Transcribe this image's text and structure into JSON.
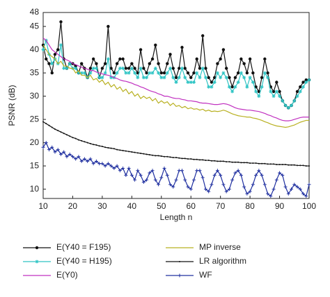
{
  "chart_data": {
    "type": "line",
    "x_label": "Length n",
    "y_label": "PSNR (dB)",
    "x": [
      10,
      11,
      12,
      13,
      14,
      15,
      16,
      17,
      18,
      19,
      20,
      21,
      22,
      23,
      24,
      25,
      26,
      27,
      28,
      29,
      30,
      31,
      32,
      33,
      34,
      35,
      36,
      37,
      38,
      39,
      40,
      41,
      42,
      43,
      44,
      45,
      46,
      47,
      48,
      49,
      50,
      51,
      52,
      53,
      54,
      55,
      56,
      57,
      58,
      59,
      60,
      61,
      62,
      63,
      64,
      65,
      66,
      67,
      68,
      69,
      70,
      71,
      72,
      73,
      74,
      75,
      76,
      77,
      78,
      79,
      80,
      81,
      82,
      83,
      84,
      85,
      86,
      87,
      88,
      89,
      90,
      91,
      92,
      93,
      94,
      95,
      96,
      97,
      98,
      99,
      100
    ],
    "xlim": [
      10,
      100
    ],
    "xticks": [
      10,
      20,
      30,
      40,
      50,
      60,
      70,
      80,
      90,
      100
    ],
    "ylim": [
      8,
      48
    ],
    "yticks": [
      10,
      15,
      20,
      25,
      30,
      35,
      40,
      45,
      48
    ],
    "series": [
      {
        "name": "E(Y40 = F195)",
        "color": "#111111",
        "marker": "circle",
        "values": [
          41,
          38,
          37,
          35,
          39,
          40,
          46,
          38,
          36,
          37,
          37,
          36.5,
          35,
          37,
          36,
          34,
          36,
          38,
          37,
          34,
          36,
          37,
          45,
          36,
          35,
          37,
          38,
          38,
          36,
          36,
          37,
          36,
          35,
          40,
          36,
          35,
          37,
          38,
          41,
          37,
          35,
          35,
          37,
          39,
          36,
          34,
          36,
          40.5,
          36,
          35,
          34,
          35,
          38,
          36,
          43,
          36,
          34,
          33,
          34,
          37,
          38,
          40,
          36,
          34,
          32,
          34,
          35,
          38,
          37,
          35,
          38,
          35,
          32,
          31,
          34,
          38,
          35,
          32,
          31,
          33,
          31,
          29,
          28,
          27.5,
          28,
          29,
          31,
          32,
          33,
          33.5,
          33.5
        ]
      },
      {
        "name": "E(Y40 = H195)",
        "color": "#2ec4c4",
        "marker": "star",
        "values": [
          40,
          42,
          39,
          37,
          38,
          37,
          41,
          36,
          36,
          37,
          36,
          36,
          35,
          35,
          35,
          34,
          35,
          36,
          36,
          34,
          34,
          35,
          38,
          34,
          34,
          35,
          36,
          36,
          35,
          35,
          36,
          35,
          34,
          36,
          34,
          34,
          35,
          35,
          36,
          35,
          34,
          34,
          35,
          36,
          34,
          33,
          34,
          36,
          34,
          33,
          33,
          33,
          35,
          34,
          36,
          34,
          32,
          32,
          33,
          35,
          34,
          35,
          34,
          32,
          31,
          32,
          33,
          35,
          34,
          32,
          34,
          33,
          31,
          30,
          32,
          35,
          34,
          31,
          30,
          31,
          30,
          29,
          28,
          27.5,
          28,
          29,
          30,
          31,
          32,
          33,
          33.5
        ]
      },
      {
        "name": "E(Y0)",
        "color": "#c030c0",
        "marker": "none",
        "values": [
          42.5,
          42,
          41,
          40,
          39.5,
          39,
          38.5,
          38,
          37.8,
          37.5,
          37,
          36.8,
          36.5,
          36.2,
          36,
          35.8,
          35.5,
          35.5,
          35.2,
          35,
          34.8,
          34.6,
          34.5,
          34.3,
          34,
          33.8,
          33.5,
          33.3,
          33.2,
          33,
          32.8,
          32.5,
          32.3,
          32,
          31.8,
          31.5,
          31.2,
          31,
          30.8,
          30.5,
          30.3,
          30,
          30,
          29.8,
          29.6,
          29.5,
          29.5,
          29.3,
          29.2,
          29,
          29,
          28.9,
          28.8,
          28.6,
          28.5,
          28.5,
          28.4,
          28.3,
          28.2,
          28.2,
          28.3,
          28.4,
          28.3,
          28.1,
          27.8,
          27.5,
          27.3,
          27.2,
          27.1,
          27,
          27,
          26.9,
          26.8,
          26.7,
          26.5,
          26.3,
          26,
          25.8,
          25.5,
          25.3,
          25,
          24.8,
          24.7,
          24.7,
          24.8,
          25,
          25.2,
          25.4,
          25.5,
          25.5,
          25.5
        ]
      },
      {
        "name": "MP inverse",
        "color": "#b8b020",
        "marker": "none",
        "values": [
          41,
          40,
          39,
          38.5,
          38,
          37,
          37.5,
          36.5,
          36.5,
          36,
          36,
          35,
          35.5,
          34.5,
          34.5,
          34,
          34.5,
          33.5,
          33.8,
          33,
          33.5,
          32.5,
          33,
          32,
          32.5,
          31.5,
          32,
          31,
          31.5,
          30.5,
          31,
          30,
          30.5,
          29.5,
          30,
          29.5,
          29.8,
          29,
          29.5,
          28.5,
          29,
          28.5,
          28.8,
          28,
          28.5,
          27.8,
          28,
          27.5,
          27.8,
          27.3,
          27.5,
          27.2,
          27.3,
          27,
          27.2,
          26.8,
          27,
          26.7,
          26.8,
          26.7,
          26.8,
          27,
          26.8,
          26.5,
          26.2,
          26,
          25.8,
          25.7,
          25.6,
          25.5,
          25.5,
          25.3,
          25.2,
          25,
          24.8,
          24.5,
          24.3,
          24,
          23.8,
          23.6,
          23.5,
          23.4,
          23.3,
          23.4,
          23.6,
          23.8,
          24.1,
          24.4,
          24.6,
          24.8,
          24.8
        ]
      },
      {
        "name": "LR algorithm",
        "color": "#111111",
        "marker": "dot",
        "values": [
          24.5,
          24.1,
          23.7,
          23.3,
          22.9,
          22.6,
          22.3,
          22.0,
          21.7,
          21.4,
          21.1,
          20.9,
          20.6,
          20.4,
          20.2,
          20.0,
          19.8,
          19.6,
          19.5,
          19.3,
          19.2,
          19.0,
          18.9,
          18.8,
          18.7,
          18.5,
          18.4,
          18.3,
          18.2,
          18.1,
          18.0,
          17.9,
          17.8,
          17.7,
          17.6,
          17.5,
          17.4,
          17.3,
          17.2,
          17.2,
          17.1,
          17.0,
          17.0,
          16.9,
          16.8,
          16.8,
          16.7,
          16.6,
          16.6,
          16.5,
          16.5,
          16.4,
          16.4,
          16.3,
          16.3,
          16.2,
          16.2,
          16.1,
          16.1,
          16.0,
          16.0,
          16.0,
          15.9,
          15.9,
          15.8,
          15.8,
          15.8,
          15.7,
          15.7,
          15.7,
          15.6,
          15.6,
          15.6,
          15.5,
          15.5,
          15.5,
          15.4,
          15.4,
          15.4,
          15.3,
          15.3,
          15.3,
          15.3,
          15.2,
          15.2,
          15.2,
          15.1,
          15.1,
          15.1,
          15.0,
          15.0
        ]
      },
      {
        "name": "WF",
        "color": "#2030a0",
        "marker": "plus",
        "values": [
          19,
          20,
          18.5,
          19,
          18,
          18.5,
          17.5,
          18,
          17,
          17.5,
          17,
          16.5,
          17,
          16,
          16.5,
          16,
          16.5,
          15.5,
          16,
          15.5,
          15.5,
          15,
          15.5,
          15,
          14.5,
          15,
          14,
          14.5,
          13,
          14.5,
          13,
          12,
          14,
          13,
          11.5,
          12,
          13.5,
          14,
          12,
          11,
          12.5,
          14.5,
          13,
          11,
          10.5,
          12,
          14,
          14,
          12,
          10.5,
          10,
          12,
          14,
          14,
          12.5,
          10,
          9.5,
          11,
          13,
          14,
          13,
          11,
          9.5,
          10,
          12,
          13.5,
          14,
          13,
          10.5,
          9,
          9.5,
          11,
          13,
          14,
          13,
          11,
          9,
          8.5,
          10,
          12,
          13.5,
          13,
          10.5,
          9,
          10,
          11,
          10.5,
          10,
          9,
          8.5,
          11
        ]
      }
    ]
  }
}
